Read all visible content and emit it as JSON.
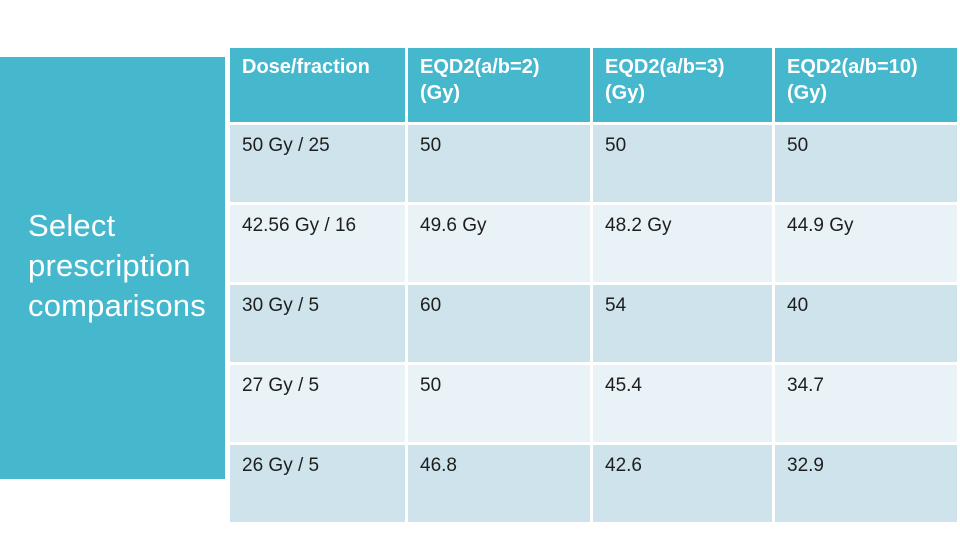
{
  "slide": {
    "title": "Select prescription comparisons"
  },
  "table": {
    "columns": [
      "Dose/fraction",
      "EQD2(a/b=2)\n(Gy)",
      "EQD2(a/b=3)\n(Gy)",
      "EQD2(a/b=10)\n(Gy)"
    ],
    "rows": [
      [
        "50 Gy / 25",
        "50",
        "50",
        "50"
      ],
      [
        "42.56 Gy / 16",
        "49.6 Gy",
        "48.2 Gy",
        "44.9 Gy"
      ],
      [
        "30 Gy / 5",
        "60",
        "54",
        "40"
      ],
      [
        "27 Gy / 5",
        "50",
        "45.4",
        "34.7"
      ],
      [
        "26 Gy / 5",
        "46.8",
        "42.6",
        "32.9"
      ]
    ]
  },
  "colors": {
    "accent_teal": "#45B8CE",
    "row_shade_dark": "#CFE3ED",
    "row_shade_light": "#E9F2F7",
    "title_text": "#ffffff",
    "cell_text": "#1e1e1e"
  }
}
